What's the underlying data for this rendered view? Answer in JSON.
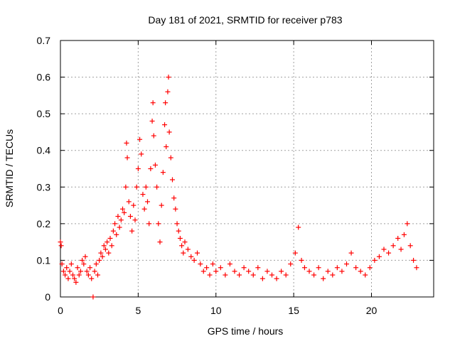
{
  "chart_data": {
    "type": "scatter",
    "title": "Day 181 of 2021, SRMTID for receiver p783",
    "xlabel": "GPS time / hours",
    "ylabel": "SRMTID / TECUs",
    "xlim": [
      0,
      24
    ],
    "ylim": [
      0,
      0.7
    ],
    "x_ticks": [
      0,
      5,
      10,
      15,
      20
    ],
    "x_tick_labels": [
      "0",
      "5",
      "10",
      "15",
      "20"
    ],
    "y_ticks": [
      0,
      0.1,
      0.2,
      0.3,
      0.4,
      0.5,
      0.6,
      0.7
    ],
    "y_tick_labels": [
      "0",
      "0.1",
      "0.2",
      "0.3",
      "0.4",
      "0.5",
      "0.6",
      "0.7"
    ],
    "grid": true,
    "marker": "+",
    "series": [
      {
        "name": "SRMTID",
        "color": "#ff0000",
        "points": [
          [
            0.0,
            0.15
          ],
          [
            0.05,
            0.14
          ],
          [
            0.1,
            0.09
          ],
          [
            0.2,
            0.07
          ],
          [
            0.3,
            0.06
          ],
          [
            0.4,
            0.08
          ],
          [
            0.5,
            0.05
          ],
          [
            0.6,
            0.07
          ],
          [
            0.7,
            0.09
          ],
          [
            0.8,
            0.06
          ],
          [
            0.9,
            0.05
          ],
          [
            1.0,
            0.04
          ],
          [
            1.1,
            0.08
          ],
          [
            1.2,
            0.06
          ],
          [
            1.3,
            0.07
          ],
          [
            1.4,
            0.1
          ],
          [
            1.5,
            0.09
          ],
          [
            1.6,
            0.11
          ],
          [
            1.7,
            0.07
          ],
          [
            1.8,
            0.06
          ],
          [
            1.9,
            0.08
          ],
          [
            2.0,
            0.05
          ],
          [
            2.1,
            0.0
          ],
          [
            2.2,
            0.07
          ],
          [
            2.3,
            0.09
          ],
          [
            2.4,
            0.06
          ],
          [
            2.5,
            0.1
          ],
          [
            2.6,
            0.12
          ],
          [
            2.7,
            0.11
          ],
          [
            2.8,
            0.14
          ],
          [
            2.9,
            0.13
          ],
          [
            3.0,
            0.15
          ],
          [
            3.1,
            0.12
          ],
          [
            3.2,
            0.16
          ],
          [
            3.3,
            0.14
          ],
          [
            3.4,
            0.18
          ],
          [
            3.5,
            0.2
          ],
          [
            3.6,
            0.17
          ],
          [
            3.7,
            0.22
          ],
          [
            3.8,
            0.19
          ],
          [
            3.9,
            0.21
          ],
          [
            4.0,
            0.24
          ],
          [
            4.1,
            0.23
          ],
          [
            4.2,
            0.3
          ],
          [
            4.25,
            0.42
          ],
          [
            4.3,
            0.38
          ],
          [
            4.4,
            0.26
          ],
          [
            4.5,
            0.22
          ],
          [
            4.6,
            0.18
          ],
          [
            4.7,
            0.25
          ],
          [
            4.8,
            0.21
          ],
          [
            4.9,
            0.3
          ],
          [
            5.0,
            0.35
          ],
          [
            5.1,
            0.43
          ],
          [
            5.2,
            0.39
          ],
          [
            5.3,
            0.28
          ],
          [
            5.4,
            0.24
          ],
          [
            5.5,
            0.3
          ],
          [
            5.6,
            0.26
          ],
          [
            5.7,
            0.2
          ],
          [
            5.8,
            0.35
          ],
          [
            5.9,
            0.48
          ],
          [
            5.95,
            0.53
          ],
          [
            6.0,
            0.44
          ],
          [
            6.1,
            0.36
          ],
          [
            6.2,
            0.3
          ],
          [
            6.3,
            0.2
          ],
          [
            6.4,
            0.15
          ],
          [
            6.5,
            0.25
          ],
          [
            6.6,
            0.34
          ],
          [
            6.7,
            0.47
          ],
          [
            6.75,
            0.53
          ],
          [
            6.8,
            0.41
          ],
          [
            6.9,
            0.56
          ],
          [
            6.95,
            0.6
          ],
          [
            7.0,
            0.45
          ],
          [
            7.1,
            0.38
          ],
          [
            7.2,
            0.32
          ],
          [
            7.3,
            0.27
          ],
          [
            7.4,
            0.24
          ],
          [
            7.5,
            0.2
          ],
          [
            7.6,
            0.18
          ],
          [
            7.7,
            0.16
          ],
          [
            7.8,
            0.14
          ],
          [
            7.9,
            0.12
          ],
          [
            8.0,
            0.15
          ],
          [
            8.2,
            0.13
          ],
          [
            8.4,
            0.11
          ],
          [
            8.6,
            0.1
          ],
          [
            8.8,
            0.12
          ],
          [
            9.0,
            0.09
          ],
          [
            9.2,
            0.07
          ],
          [
            9.4,
            0.08
          ],
          [
            9.6,
            0.06
          ],
          [
            9.8,
            0.09
          ],
          [
            10.0,
            0.07
          ],
          [
            10.3,
            0.08
          ],
          [
            10.6,
            0.06
          ],
          [
            10.9,
            0.09
          ],
          [
            11.2,
            0.07
          ],
          [
            11.5,
            0.06
          ],
          [
            11.8,
            0.08
          ],
          [
            12.1,
            0.07
          ],
          [
            12.4,
            0.06
          ],
          [
            12.7,
            0.08
          ],
          [
            13.0,
            0.05
          ],
          [
            13.3,
            0.07
          ],
          [
            13.6,
            0.06
          ],
          [
            13.9,
            0.05
          ],
          [
            14.2,
            0.07
          ],
          [
            14.5,
            0.06
          ],
          [
            14.8,
            0.09
          ],
          [
            15.1,
            0.12
          ],
          [
            15.3,
            0.19
          ],
          [
            15.5,
            0.1
          ],
          [
            15.7,
            0.08
          ],
          [
            16.0,
            0.07
          ],
          [
            16.3,
            0.06
          ],
          [
            16.6,
            0.08
          ],
          [
            16.9,
            0.05
          ],
          [
            17.2,
            0.07
          ],
          [
            17.5,
            0.06
          ],
          [
            17.8,
            0.08
          ],
          [
            18.1,
            0.07
          ],
          [
            18.4,
            0.09
          ],
          [
            18.7,
            0.12
          ],
          [
            19.0,
            0.08
          ],
          [
            19.3,
            0.07
          ],
          [
            19.6,
            0.06
          ],
          [
            19.9,
            0.08
          ],
          [
            20.2,
            0.1
          ],
          [
            20.5,
            0.11
          ],
          [
            20.8,
            0.13
          ],
          [
            21.1,
            0.12
          ],
          [
            21.4,
            0.14
          ],
          [
            21.7,
            0.16
          ],
          [
            21.9,
            0.13
          ],
          [
            22.1,
            0.17
          ],
          [
            22.3,
            0.2
          ],
          [
            22.5,
            0.14
          ],
          [
            22.7,
            0.1
          ],
          [
            22.9,
            0.08
          ]
        ]
      }
    ]
  }
}
